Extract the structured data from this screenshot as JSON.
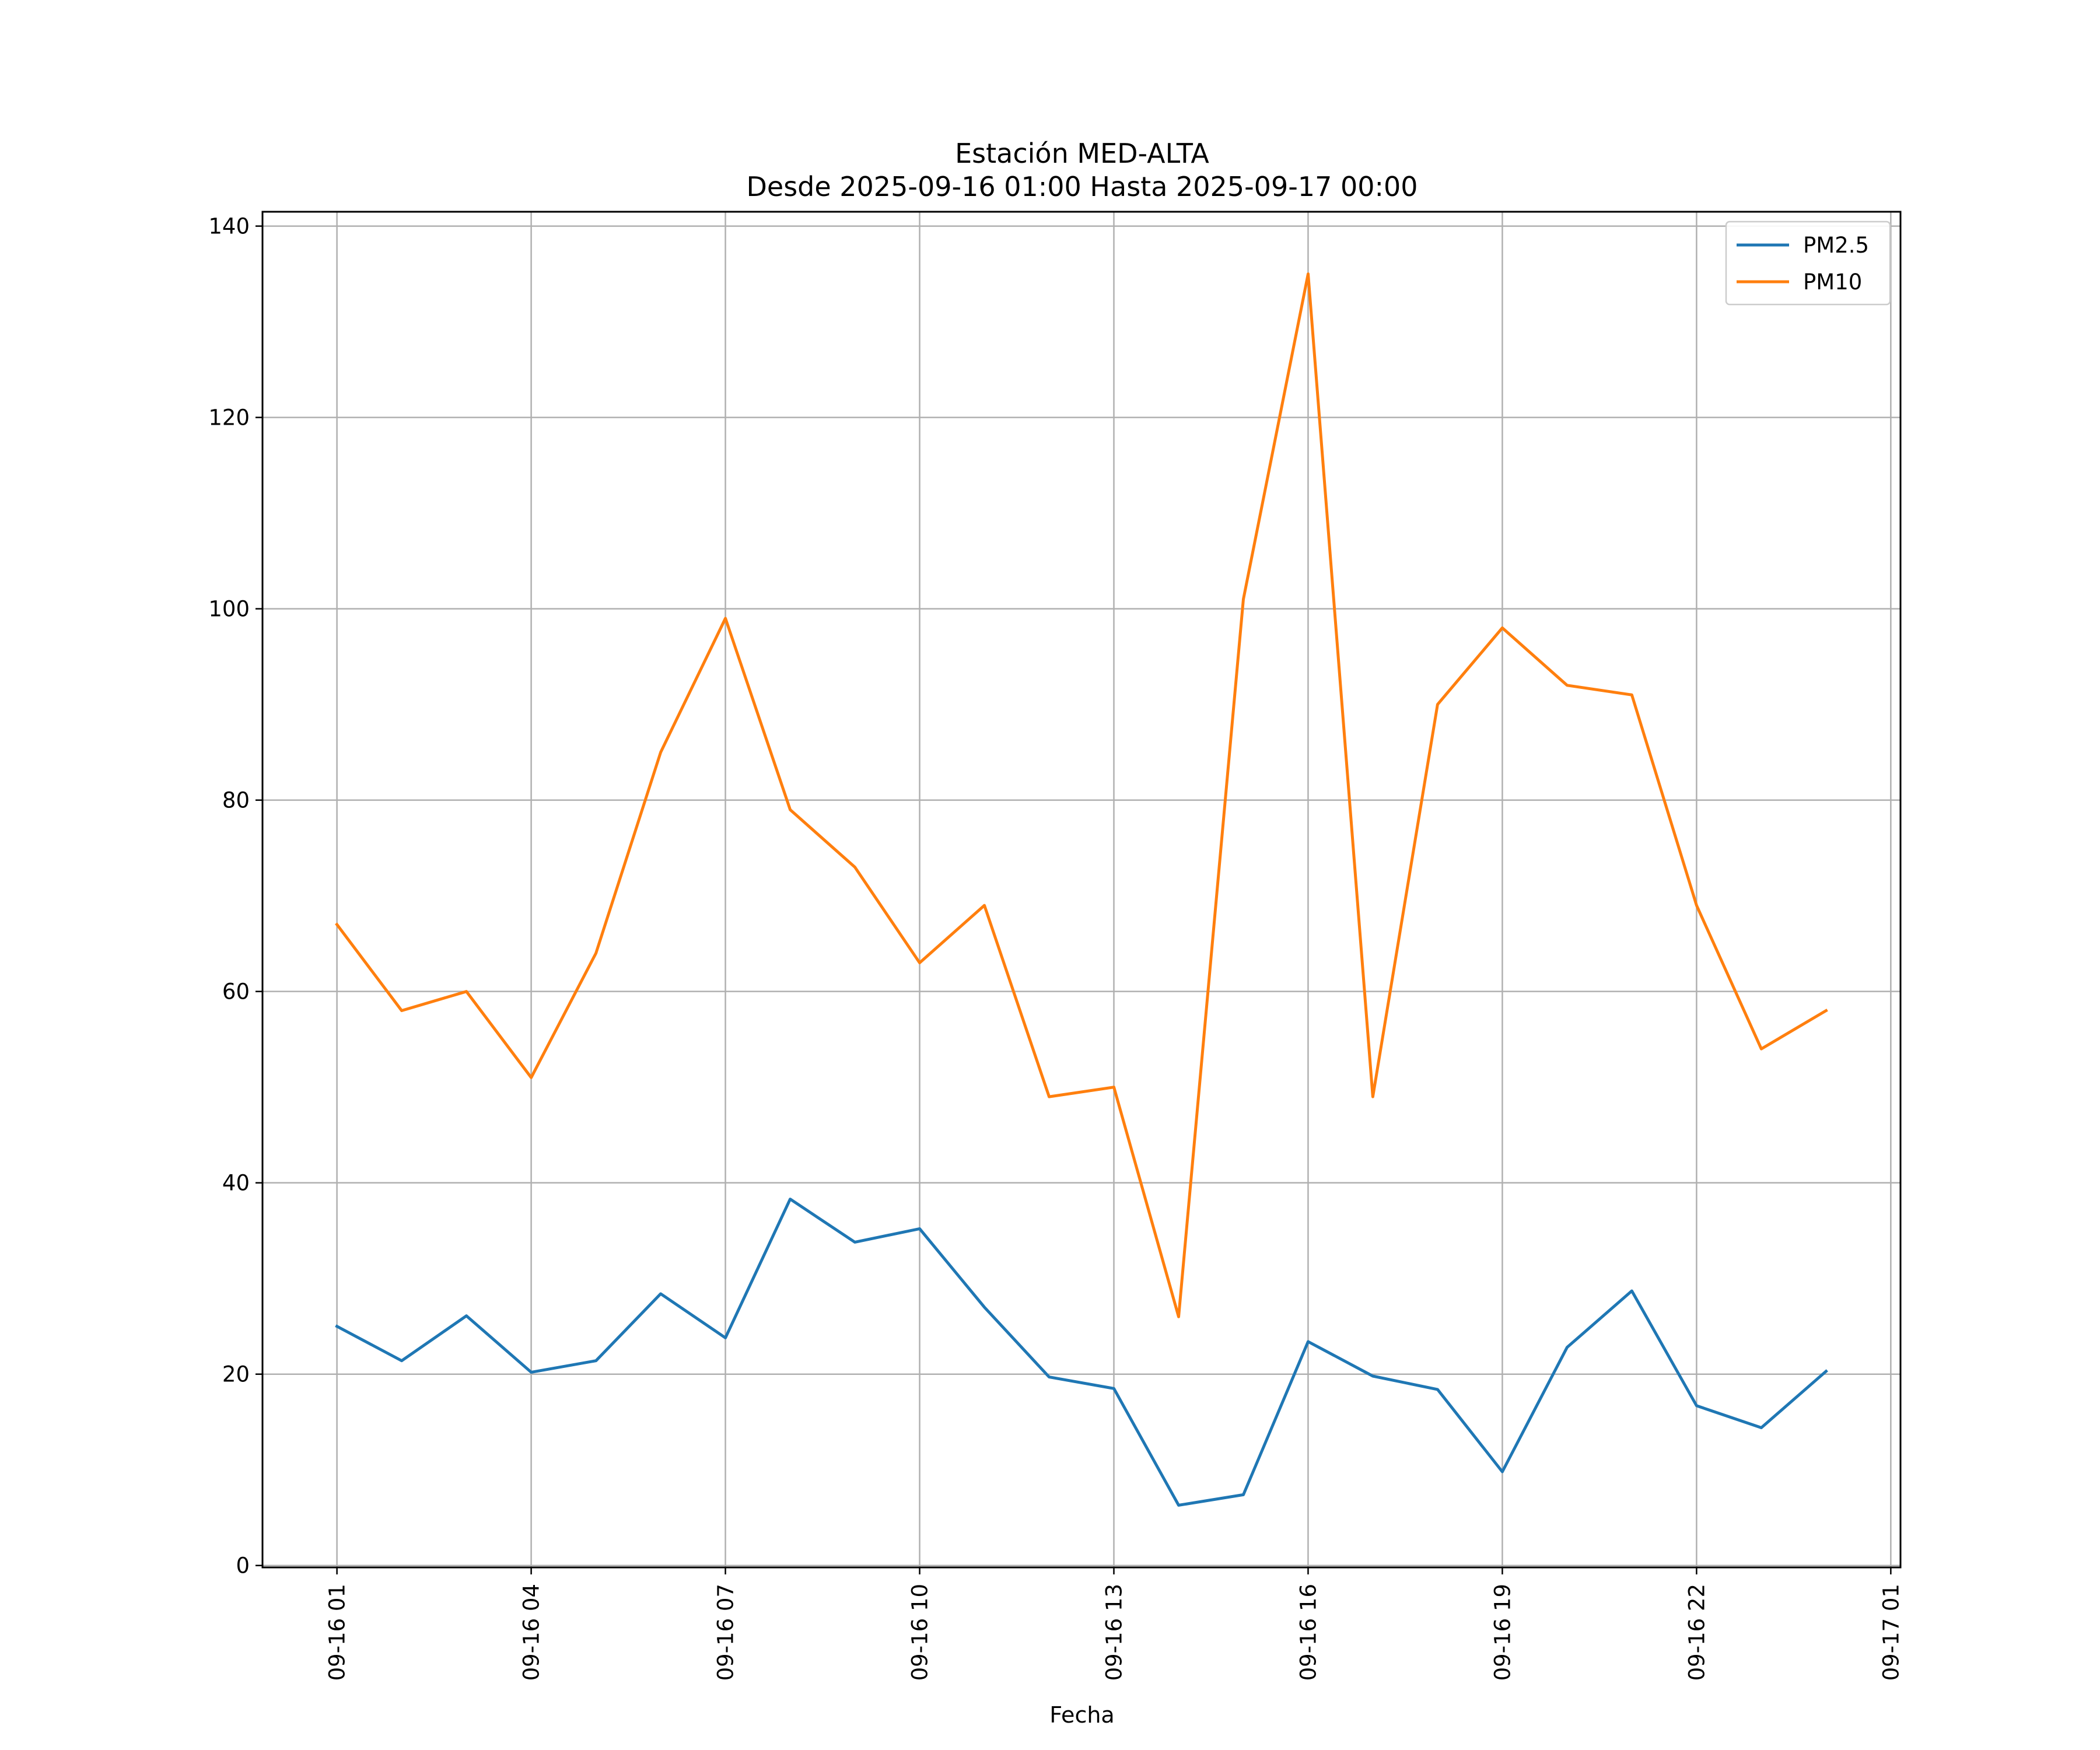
{
  "chart_data": {
    "type": "line",
    "title": "Estación MED-ALTA",
    "subtitle": "Desde 2025-09-16 01:00 Hasta 2025-09-17 00:00",
    "xlabel": "Fecha",
    "ylabel": "",
    "x": [
      "2025-09-16 01:00",
      "2025-09-16 02:00",
      "2025-09-16 03:00",
      "2025-09-16 04:00",
      "2025-09-16 05:00",
      "2025-09-16 06:00",
      "2025-09-16 07:00",
      "2025-09-16 08:00",
      "2025-09-16 09:00",
      "2025-09-16 10:00",
      "2025-09-16 11:00",
      "2025-09-16 12:00",
      "2025-09-16 13:00",
      "2025-09-16 14:00",
      "2025-09-16 15:00",
      "2025-09-16 16:00",
      "2025-09-16 17:00",
      "2025-09-16 18:00",
      "2025-09-16 19:00",
      "2025-09-16 20:00",
      "2025-09-16 21:00",
      "2025-09-16 22:00",
      "2025-09-16 23:00",
      "2025-09-17 00:00"
    ],
    "series": [
      {
        "name": "PM2.5",
        "color": "#1f77b4",
        "values": [
          25.0,
          21.4,
          26.1,
          20.2,
          21.4,
          28.4,
          23.8,
          38.3,
          33.8,
          35.2,
          27.0,
          19.7,
          18.5,
          6.3,
          7.4,
          23.4,
          19.8,
          18.4,
          9.8,
          22.8,
          28.7,
          16.7,
          14.4,
          20.3
        ]
      },
      {
        "name": "PM10",
        "color": "#ff7f0e",
        "values": [
          67,
          58,
          60,
          51,
          64,
          85,
          99,
          79,
          73,
          63,
          69,
          49,
          50,
          26,
          101,
          135,
          49,
          90,
          98,
          92,
          91,
          69,
          54,
          58
        ]
      }
    ],
    "xlim": [
      "2025-09-15 23:51",
      "2025-09-17 01:09"
    ],
    "ylim": [
      -0.2,
      141.5
    ],
    "yticks": [
      0,
      20,
      40,
      60,
      80,
      100,
      120,
      140
    ],
    "xticks": [
      "2025-09-16 01:00",
      "2025-09-16 04:00",
      "2025-09-16 07:00",
      "2025-09-16 10:00",
      "2025-09-16 13:00",
      "2025-09-16 16:00",
      "2025-09-16 19:00",
      "2025-09-16 22:00",
      "2025-09-17 01:00"
    ],
    "xtick_labels": [
      "09-16 01",
      "09-16 04",
      "09-16 07",
      "09-16 10",
      "09-16 13",
      "09-16 16",
      "09-16 19",
      "09-16 22",
      "09-17 01"
    ],
    "grid": true,
    "legend_position": "upper right"
  }
}
